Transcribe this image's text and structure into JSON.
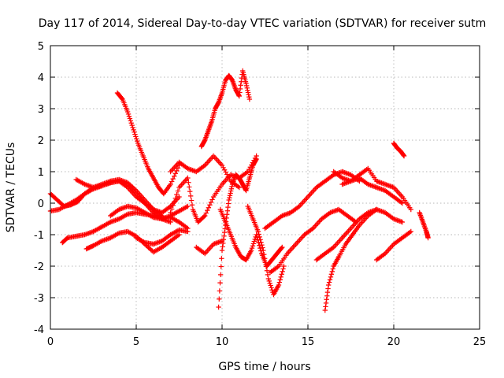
{
  "chart_data": {
    "type": "scatter",
    "title": "Day 117 of 2014, Sidereal Day-to-day VTEC variation (SDTVAR) for receiver sutm",
    "xlabel": "GPS time / hours",
    "ylabel": "SDTVAR / TECUs",
    "xlim": [
      0,
      25
    ],
    "ylim": [
      -4,
      5
    ],
    "x_ticks": [
      "0",
      "5",
      "10",
      "15",
      "20",
      "25"
    ],
    "y_ticks": [
      "-4",
      "-3",
      "-2",
      "-1",
      "0",
      "1",
      "2",
      "3",
      "4",
      "5"
    ],
    "grid": true,
    "marker": "+",
    "color": "#ff0000",
    "series": [
      {
        "x": [
          0.0,
          0.5,
          1.0,
          1.5,
          2.0,
          2.5,
          3.0,
          3.5,
          4.0,
          4.5,
          5.0,
          5.5,
          6.0,
          6.5,
          7.0,
          7.5
        ],
        "y": [
          -0.25,
          -0.2,
          -0.05,
          0.1,
          0.3,
          0.45,
          0.55,
          0.65,
          0.7,
          0.5,
          0.2,
          0.0,
          -0.2,
          -0.3,
          -0.1,
          0.2
        ]
      },
      {
        "x": [
          0.0,
          0.4,
          0.8,
          1.2,
          1.6,
          2.0,
          2.5,
          3.0,
          3.5,
          4.0,
          4.5,
          5.0,
          5.5,
          6.0,
          6.5
        ],
        "y": [
          0.3,
          0.1,
          -0.1,
          -0.05,
          0.05,
          0.3,
          0.5,
          0.6,
          0.7,
          0.75,
          0.65,
          0.4,
          0.1,
          -0.2,
          -0.4
        ]
      },
      {
        "x": [
          1.5,
          2.0,
          2.5,
          3.0,
          3.5,
          4.0,
          4.5,
          5.0,
          5.5,
          6.0,
          6.5,
          7.0
        ],
        "y": [
          0.75,
          0.6,
          0.5,
          0.55,
          0.65,
          0.7,
          0.6,
          0.3,
          0.0,
          -0.3,
          -0.5,
          -0.6
        ]
      },
      {
        "x": [
          0.7,
          1.0,
          1.5,
          2.0,
          2.5,
          3.0,
          3.5,
          4.0,
          4.5,
          5.0,
          5.5,
          6.0,
          6.5,
          7.0,
          7.5,
          8.0
        ],
        "y": [
          -1.25,
          -1.1,
          -1.05,
          -1.0,
          -0.9,
          -0.75,
          -0.6,
          -0.5,
          -0.35,
          -0.3,
          -0.35,
          -0.4,
          -0.5,
          -0.45,
          -0.6,
          -0.8
        ]
      },
      {
        "x": [
          2.1,
          2.5,
          3.0,
          3.5,
          4.0,
          4.5,
          5.0,
          5.5,
          6.0,
          6.5,
          7.0,
          7.5
        ],
        "y": [
          -1.45,
          -1.35,
          -1.2,
          -1.1,
          -0.95,
          -0.9,
          -1.05,
          -1.3,
          -1.55,
          -1.4,
          -1.2,
          -1.0
        ]
      },
      {
        "x": [
          3.5,
          4.0,
          4.5,
          5.0,
          5.5,
          6.0,
          6.5,
          7.0,
          7.5,
          8.0
        ],
        "y": [
          -0.4,
          -0.2,
          -0.1,
          -0.15,
          -0.3,
          -0.45,
          -0.5,
          -0.4,
          -0.25,
          -0.1
        ]
      },
      {
        "x": [
          5.0,
          5.5,
          6.0,
          6.5,
          7.0,
          7.5,
          8.0
        ],
        "y": [
          -1.1,
          -1.25,
          -1.3,
          -1.2,
          -1.0,
          -0.85,
          -0.9
        ]
      },
      {
        "x": [
          3.9,
          4.2,
          4.5,
          4.8,
          5.1,
          5.4,
          5.7,
          6.0,
          6.3,
          6.6,
          7.0,
          7.5
        ],
        "y": [
          3.5,
          3.3,
          2.9,
          2.4,
          1.9,
          1.5,
          1.1,
          0.8,
          0.5,
          0.3,
          0.6,
          1.2
        ]
      },
      {
        "x": [
          7.0,
          7.5,
          8.0,
          8.5,
          9.0,
          9.5,
          10.0,
          10.5,
          11.0
        ],
        "y": [
          1.0,
          1.3,
          1.1,
          1.0,
          1.2,
          1.5,
          1.2,
          0.7,
          0.5
        ]
      },
      {
        "x": [
          7.0,
          7.5,
          8.0,
          8.3,
          8.6,
          9.0,
          9.5,
          10.0,
          10.5,
          11.0,
          11.5,
          12.0
        ],
        "y": [
          -0.3,
          0.5,
          0.8,
          -0.2,
          -0.6,
          -0.4,
          0.2,
          0.6,
          0.9,
          0.8,
          1.0,
          1.5
        ]
      },
      {
        "x": [
          8.5,
          9.0,
          9.5,
          10.0
        ],
        "y": [
          -1.4,
          -1.6,
          -1.3,
          -1.2
        ]
      },
      {
        "x": [
          8.8,
          9.0,
          9.2,
          9.4,
          9.6,
          9.8,
          10.0,
          10.2,
          10.4,
          10.6,
          10.8,
          11.0,
          11.2,
          11.4,
          11.6
        ],
        "y": [
          1.8,
          2.0,
          2.3,
          2.6,
          3.0,
          3.2,
          3.5,
          3.9,
          4.05,
          3.9,
          3.6,
          3.4,
          4.2,
          3.8,
          3.3
        ]
      },
      {
        "x": [
          9.8,
          10.0,
          10.2,
          10.4,
          10.6,
          10.8,
          11.0,
          11.2,
          11.4,
          11.6,
          11.8,
          12.0
        ],
        "y": [
          -3.3,
          -1.5,
          -0.7,
          0.1,
          0.6,
          0.9,
          0.8,
          0.6,
          0.4,
          0.8,
          1.2,
          1.4
        ]
      },
      {
        "x": [
          9.9,
          10.2,
          10.5,
          10.8,
          11.1,
          11.4,
          11.7,
          12.0,
          12.3,
          12.6,
          12.9,
          13.2,
          13.5
        ],
        "y": [
          -0.2,
          -0.6,
          -1.0,
          -1.4,
          -1.7,
          -1.8,
          -1.5,
          -1.0,
          -1.6,
          -2.0,
          -1.8,
          -1.6,
          -1.4
        ]
      },
      {
        "x": [
          11.5,
          11.8,
          12.1,
          12.4,
          12.7,
          13.0,
          13.3,
          13.6
        ],
        "y": [
          -0.1,
          -0.5,
          -0.9,
          -1.5,
          -2.4,
          -2.9,
          -2.6,
          -2.0
        ]
      },
      {
        "x": [
          12.5,
          13.0,
          13.5,
          14.0,
          14.5,
          15.0,
          15.5,
          16.0,
          16.5,
          17.0,
          17.5,
          18.0
        ],
        "y": [
          -0.8,
          -0.6,
          -0.4,
          -0.3,
          -0.1,
          0.2,
          0.5,
          0.7,
          0.9,
          1.0,
          0.9,
          0.7
        ]
      },
      {
        "x": [
          12.8,
          13.3,
          13.8,
          14.3,
          14.8,
          15.3,
          15.8,
          16.3,
          16.8,
          17.3,
          17.8
        ],
        "y": [
          -2.2,
          -2.0,
          -1.6,
          -1.3,
          -1.0,
          -0.8,
          -0.5,
          -0.3,
          -0.2,
          -0.4,
          -0.6
        ]
      },
      {
        "x": [
          15.5,
          16.0,
          16.5,
          17.0,
          17.5,
          18.0,
          18.5,
          19.0,
          19.5,
          20.0,
          20.5
        ],
        "y": [
          -1.8,
          -1.6,
          -1.4,
          -1.1,
          -0.8,
          -0.5,
          -0.3,
          -0.2,
          -0.3,
          -0.5,
          -0.6
        ]
      },
      {
        "x": [
          16.0,
          16.2,
          16.5,
          16.8,
          17.2,
          17.6,
          18.0,
          18.5,
          19.0
        ],
        "y": [
          -3.4,
          -2.6,
          -2.0,
          -1.7,
          -1.3,
          -1.0,
          -0.7,
          -0.4,
          -0.2
        ]
      },
      {
        "x": [
          17.0,
          17.5,
          18.0,
          18.5,
          19.0,
          19.5,
          20.0,
          20.5
        ],
        "y": [
          0.6,
          0.7,
          0.8,
          0.6,
          0.5,
          0.4,
          0.2,
          0.0
        ]
      },
      {
        "x": [
          16.5,
          17.0,
          17.5,
          18.0,
          18.5,
          19.0,
          19.5,
          20.0,
          20.5,
          21.0
        ],
        "y": [
          1.0,
          0.8,
          0.7,
          0.9,
          1.1,
          0.7,
          0.6,
          0.5,
          0.2,
          -0.2
        ]
      },
      {
        "x": [
          19.0,
          19.5,
          20.0,
          20.5,
          21.0
        ],
        "y": [
          -1.8,
          -1.6,
          -1.3,
          -1.1,
          -0.9
        ]
      },
      {
        "x": [
          20.0,
          20.2,
          20.4,
          20.6
        ],
        "y": [
          1.9,
          1.75,
          1.65,
          1.5
        ]
      },
      {
        "x": [
          21.5,
          21.7,
          21.9,
          22.0
        ],
        "y": [
          -0.3,
          -0.6,
          -0.9,
          -1.1
        ]
      }
    ]
  }
}
